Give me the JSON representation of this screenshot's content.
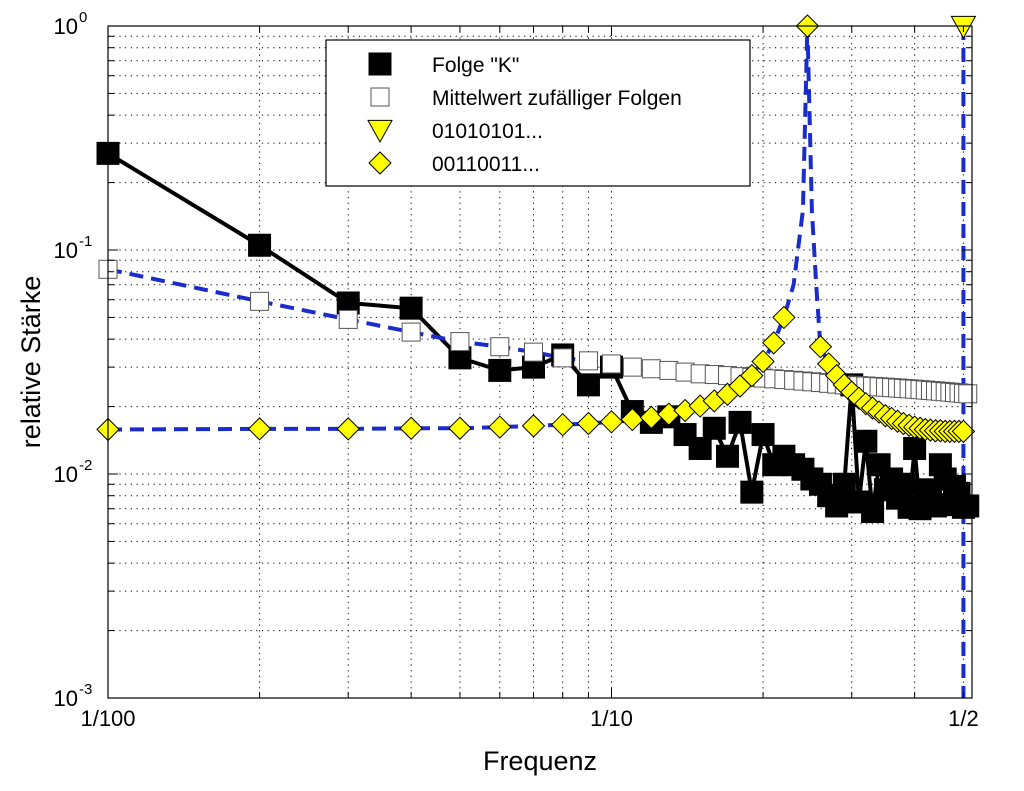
{
  "chart_data": {
    "type": "line",
    "xscale": "log",
    "yscale": "log",
    "xlabel": "Frequenz",
    "ylabel": "relative Stärke",
    "xlim": [
      0.01,
      0.52
    ],
    "ylim": [
      0.001,
      1
    ],
    "grid": true,
    "legend_position": "top-center",
    "x_ticks": [
      {
        "value": 0.01,
        "label": "1/100"
      },
      {
        "value": 0.1,
        "label": "1/10"
      },
      {
        "value": 0.5,
        "label": "1/2"
      }
    ],
    "y_ticks": [
      {
        "value": 0.001,
        "base": "10",
        "exp": "-3"
      },
      {
        "value": 0.01,
        "base": "10",
        "exp": "-2"
      },
      {
        "value": 0.1,
        "base": "10",
        "exp": "-1"
      },
      {
        "value": 1,
        "base": "10",
        "exp": "0"
      }
    ],
    "series": [
      {
        "name": "Folge \"K\"",
        "line_color": "#000000",
        "line_style": "solid",
        "marker": "square-filled",
        "marker_color": "#000000",
        "x": [
          0.01,
          0.02,
          0.03,
          0.04,
          0.05,
          0.06,
          0.07,
          0.08,
          0.09,
          0.1,
          0.11,
          0.12,
          0.13,
          0.14,
          0.15,
          0.16,
          0.17,
          0.18,
          0.19,
          0.2,
          0.21,
          0.22,
          0.23,
          0.24,
          0.25,
          0.26,
          0.27,
          0.28,
          0.29,
          0.3,
          0.31,
          0.32,
          0.33,
          0.34,
          0.35,
          0.36,
          0.37,
          0.38,
          0.39,
          0.4,
          0.41,
          0.42,
          0.43,
          0.44,
          0.45,
          0.46,
          0.47,
          0.48,
          0.49,
          0.5,
          0.51
        ],
        "y": [
          0.27,
          0.105,
          0.058,
          0.055,
          0.033,
          0.029,
          0.03,
          0.034,
          0.025,
          0.03,
          0.019,
          0.017,
          0.018,
          0.015,
          0.013,
          0.016,
          0.012,
          0.017,
          0.0083,
          0.015,
          0.011,
          0.012,
          0.011,
          0.0105,
          0.0095,
          0.009,
          0.008,
          0.0072,
          0.009,
          0.025,
          0.0075,
          0.014,
          0.0068,
          0.011,
          0.0085,
          0.0095,
          0.0078,
          0.009,
          0.0071,
          0.013,
          0.007,
          0.0085,
          0.0075,
          0.0072,
          0.011,
          0.0095,
          0.0073,
          0.0088,
          0.0082,
          0.0071,
          0.0072
        ]
      },
      {
        "name": "Mittelwert zufälliger Folgen",
        "line_color": "#1a2ccc",
        "line_style": "dashed",
        "marker": "square-open",
        "marker_color": "#ffffff",
        "x": [
          0.01,
          0.02,
          0.03,
          0.04,
          0.05,
          0.06,
          0.07,
          0.08,
          0.09,
          0.1,
          0.11,
          0.12,
          0.13,
          0.14,
          0.15,
          0.16,
          0.17,
          0.18,
          0.19,
          0.2,
          0.21,
          0.22,
          0.23,
          0.24,
          0.25,
          0.26,
          0.27,
          0.28,
          0.29,
          0.3,
          0.31,
          0.32,
          0.33,
          0.34,
          0.35,
          0.36,
          0.37,
          0.38,
          0.39,
          0.4,
          0.41,
          0.42,
          0.43,
          0.44,
          0.45,
          0.46,
          0.47,
          0.48,
          0.49,
          0.5,
          0.51
        ],
        "y": [
          0.082,
          0.059,
          0.049,
          0.043,
          0.039,
          0.037,
          0.035,
          0.033,
          0.032,
          0.031,
          0.03,
          0.0295,
          0.029,
          0.0285,
          0.028,
          0.0278,
          0.0275,
          0.0272,
          0.027,
          0.0268,
          0.0266,
          0.0264,
          0.0262,
          0.026,
          0.0258,
          0.0256,
          0.0254,
          0.0252,
          0.025,
          0.0249,
          0.0248,
          0.0247,
          0.0246,
          0.0245,
          0.0244,
          0.0243,
          0.0242,
          0.0241,
          0.024,
          0.0239,
          0.0238,
          0.0237,
          0.0236,
          0.0235,
          0.0234,
          0.0233,
          0.0232,
          0.0231,
          0.023,
          0.0229,
          0.0228
        ]
      },
      {
        "name": "01010101...",
        "line_color": "#1a2ccc",
        "line_style": "dashed",
        "marker": "triangle-down",
        "marker_color": "#ffff00",
        "x": [
          0.5
        ],
        "y": [
          1.0
        ],
        "drop_to_axis": true
      },
      {
        "name": "00110011...",
        "line_color": "#1a2ccc",
        "line_style": "dashed",
        "marker": "diamond",
        "marker_color": "#ffff00",
        "x": [
          0.01,
          0.02,
          0.03,
          0.04,
          0.05,
          0.06,
          0.07,
          0.08,
          0.09,
          0.1,
          0.11,
          0.12,
          0.13,
          0.14,
          0.15,
          0.16,
          0.17,
          0.18,
          0.19,
          0.2,
          0.21,
          0.22,
          0.23,
          0.24,
          0.245,
          0.25,
          0.255,
          0.26,
          0.27,
          0.28,
          0.29,
          0.3,
          0.31,
          0.32,
          0.33,
          0.34,
          0.35,
          0.36,
          0.37,
          0.38,
          0.39,
          0.4,
          0.41,
          0.42,
          0.43,
          0.44,
          0.45,
          0.46,
          0.47,
          0.48,
          0.49,
          0.5
        ],
        "y": [
          0.0158,
          0.0159,
          0.0159,
          0.016,
          0.016,
          0.0162,
          0.0164,
          0.0166,
          0.0168,
          0.0171,
          0.0175,
          0.0179,
          0.0185,
          0.0192,
          0.0201,
          0.0212,
          0.0227,
          0.0247,
          0.0275,
          0.0318,
          0.0385,
          0.05,
          0.07,
          0.15,
          1.0,
          0.15,
          0.07,
          0.037,
          0.031,
          0.0275,
          0.025,
          0.0232,
          0.0218,
          0.0206,
          0.0197,
          0.0189,
          0.0182,
          0.0177,
          0.0172,
          0.0168,
          0.0165,
          0.0162,
          0.016,
          0.0158,
          0.0157,
          0.0156,
          0.0156,
          0.0155,
          0.0155,
          0.0155,
          0.0155,
          0.0155
        ],
        "line_only_indices": [
          22,
          23,
          25,
          26
        ]
      }
    ]
  }
}
